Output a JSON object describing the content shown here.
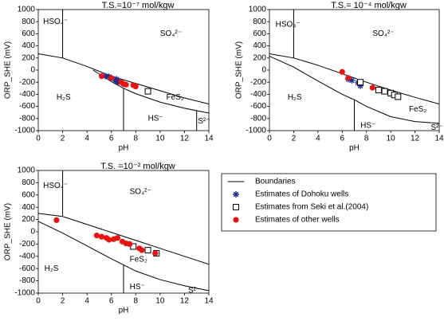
{
  "chart_data": [
    {
      "type": "scatter",
      "title": "T.S.=10⁻⁷ mol/kgw",
      "x_label": "pH",
      "y_label": "ORP_SHE (mV)",
      "xlim": [
        0,
        14
      ],
      "xticks": [
        0,
        2,
        4,
        6,
        8,
        10,
        12,
        14
      ],
      "ylim": [
        -1000,
        1000
      ],
      "yticks": [
        -1000,
        -800,
        -600,
        -400,
        -200,
        0,
        200,
        400,
        600,
        800,
        1000
      ],
      "annotations": [
        "HSO₄⁻",
        "SO₄²⁻",
        "H₂S",
        "FeS₂",
        "HS⁻",
        "S²⁻"
      ],
      "boundaries": {
        "name": "Boundaries",
        "color": "#000000",
        "lines": [
          {
            "x": [
              0,
              2,
              4,
              6,
              8,
              10,
              12,
              14
            ],
            "y": [
              270,
              200,
              60,
              -100,
              -220,
              -340,
              -460,
              -560
            ]
          },
          {
            "x": [
              4.5,
              6,
              7,
              8,
              10,
              12,
              14
            ],
            "y": [
              0,
              -190,
              -300,
              -390,
              -530,
              -630,
              -710
            ]
          },
          {
            "x": [
              2,
              2
            ],
            "y": [
              200,
              1000
            ]
          },
          {
            "x": [
              7,
              7
            ],
            "y": [
              -300,
              -1000
            ]
          },
          {
            "x": [
              13,
              13
            ],
            "y": [
              -670,
              -1000
            ]
          }
        ]
      },
      "series": [
        {
          "name": "Estimates of Dohoku wells",
          "marker": "star",
          "color": "#1a2f8a",
          "x": [
            5.5,
            5.8,
            6.3,
            6.5,
            6.6,
            6.4
          ],
          "y": [
            -100,
            -110,
            -170,
            -200,
            -190,
            -150
          ]
        },
        {
          "name": "Estimates from Seki et al.(2004)",
          "marker": "square",
          "color": "#000000",
          "x": [
            9
          ],
          "y": [
            -350
          ]
        },
        {
          "name": "Estimates of other wells",
          "marker": "circle",
          "color": "#ee1111",
          "x": [
            5.2,
            6.0,
            6.8,
            7.0,
            7.2,
            7.8,
            8.0
          ],
          "y": [
            -100,
            -130,
            -200,
            -230,
            -240,
            -250,
            -270
          ]
        }
      ]
    },
    {
      "type": "scatter",
      "title": "T.S.= 10⁻⁴ mol/kgw",
      "x_label": "pH",
      "y_label": "ORP_SHE (mV)",
      "xlim": [
        0,
        14
      ],
      "xticks": [
        0,
        2,
        4,
        6,
        8,
        10,
        12,
        14
      ],
      "ylim": [
        -1000,
        1000
      ],
      "yticks": [
        -1000,
        -800,
        -600,
        -400,
        -200,
        0,
        200,
        400,
        600,
        800,
        1000
      ],
      "annotations": [
        "HSO₄⁻",
        "SO₄²⁻",
        "H₂S",
        "FeS₂",
        "HS⁻",
        "S²⁻"
      ],
      "boundaries": {
        "color": "#000000",
        "lines": [
          {
            "x": [
              0,
              2,
              4,
              6,
              8,
              10,
              12,
              14
            ],
            "y": [
              270,
              200,
              80,
              -60,
              -200,
              -330,
              -450,
              -560
            ]
          },
          {
            "x": [
              0,
              2,
              4,
              6,
              7,
              8,
              10,
              12,
              14
            ],
            "y": [
              230,
              50,
              -180,
              -400,
              -490,
              -600,
              -770,
              -850,
              -880
            ]
          },
          {
            "x": [
              2,
              2
            ],
            "y": [
              200,
              1000
            ]
          },
          {
            "x": [
              7,
              7
            ],
            "y": [
              -490,
              -1000
            ]
          }
        ]
      },
      "series": [
        {
          "marker": "star",
          "color": "#1a2f8a",
          "x": [
            6.5,
            6.8,
            7.3,
            7.5
          ],
          "y": [
            -150,
            -170,
            -210,
            -260
          ]
        },
        {
          "marker": "square",
          "color": "#000000",
          "x": [
            7.5,
            9,
            9.5,
            10,
            10.3,
            10.6
          ],
          "y": [
            -200,
            -330,
            -350,
            -380,
            -410,
            -440
          ]
        },
        {
          "marker": "circle",
          "color": "#ee1111",
          "x": [
            6,
            6.5,
            8.5
          ],
          "y": [
            -30,
            -130,
            -290
          ]
        }
      ]
    },
    {
      "type": "scatter",
      "title": "T.S. =10⁻² mol/kgw",
      "x_label": "pH",
      "y_label": "ORP_SHE (mV)",
      "xlim": [
        0,
        14
      ],
      "xticks": [
        0,
        2,
        4,
        6,
        8,
        10,
        12,
        14
      ],
      "ylim": [
        -1000,
        1000
      ],
      "yticks": [
        -1000,
        -800,
        -600,
        -400,
        -200,
        0,
        200,
        400,
        600,
        800,
        1000
      ],
      "annotations": [
        "HSO₄⁻",
        "SO₄²⁻",
        "H₂S",
        "FeS₂",
        "HS⁻",
        "S²⁻"
      ],
      "boundaries": {
        "color": "#000000",
        "lines": [
          {
            "x": [
              0,
              2,
              4,
              6,
              8,
              10,
              12,
              14
            ],
            "y": [
              300,
              250,
              120,
              -10,
              -140,
              -270,
              -400,
              -530
            ]
          },
          {
            "x": [
              0,
              2,
              4,
              6,
              7,
              8,
              10,
              12,
              14
            ],
            "y": [
              170,
              -20,
              -230,
              -440,
              -540,
              -640,
              -780,
              -880,
              -960
            ]
          },
          {
            "x": [
              2,
              2
            ],
            "y": [
              250,
              1000
            ]
          },
          {
            "x": [
              7,
              7
            ],
            "y": [
              -540,
              -1000
            ]
          }
        ]
      },
      "series": [
        {
          "marker": "square",
          "color": "#000000",
          "x": [
            7.8,
            9,
            9.7
          ],
          "y": [
            -240,
            -300,
            -350
          ]
        },
        {
          "marker": "circle",
          "color": "#ee1111",
          "x": [
            1.5,
            4.8,
            5.2,
            5.6,
            5.8,
            6.2,
            6.5,
            6.9,
            7.2,
            7.5,
            8.3,
            8.5,
            9.6
          ],
          "y": [
            190,
            -60,
            -80,
            -100,
            -130,
            -120,
            -100,
            -160,
            -190,
            -200,
            -270,
            -300,
            -350
          ]
        }
      ]
    }
  ]
}
